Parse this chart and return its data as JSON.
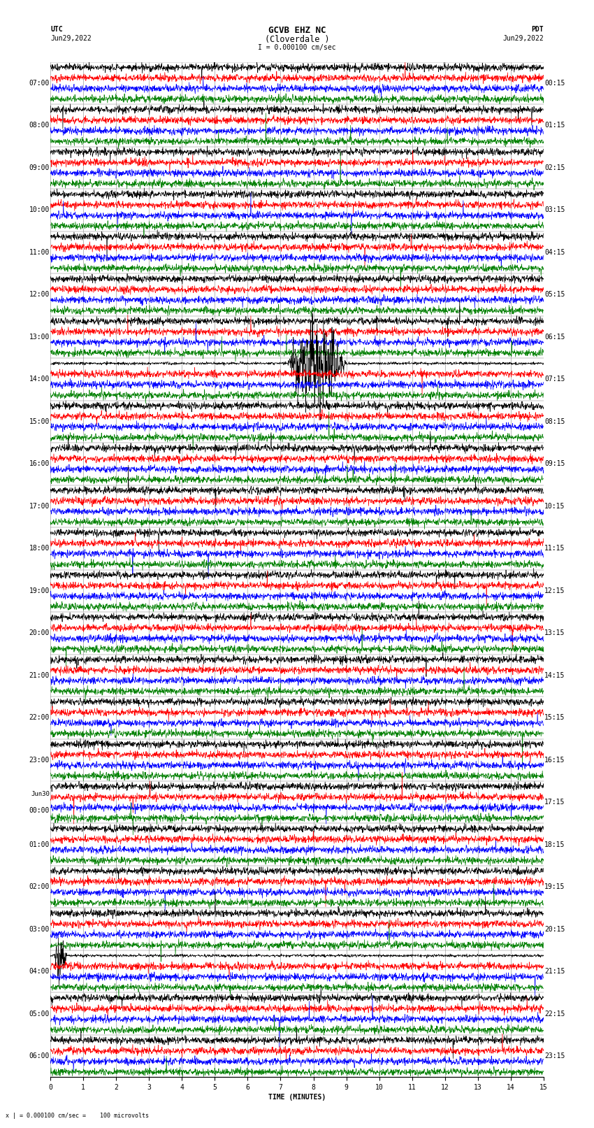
{
  "title_line1": "GCVB EHZ NC",
  "title_line2": "(Cloverdale )",
  "scale_text": "I = 0.000100 cm/sec",
  "left_header": "UTC",
  "left_date": "Jun29,2022",
  "right_header": "PDT",
  "right_date": "Jun29,2022",
  "bottom_label": "TIME (MINUTES)",
  "footer_text": "x | = 0.000100 cm/sec =    100 microvolts",
  "utc_labels": [
    "07:00",
    "08:00",
    "09:00",
    "10:00",
    "11:00",
    "12:00",
    "13:00",
    "14:00",
    "15:00",
    "16:00",
    "17:00",
    "18:00",
    "19:00",
    "20:00",
    "21:00",
    "22:00",
    "23:00",
    "Jun30\n00:00",
    "01:00",
    "02:00",
    "03:00",
    "04:00",
    "05:00",
    "06:00"
  ],
  "pdt_labels": [
    "00:15",
    "01:15",
    "02:15",
    "03:15",
    "04:15",
    "05:15",
    "06:15",
    "07:15",
    "08:15",
    "09:15",
    "10:15",
    "11:15",
    "12:15",
    "13:15",
    "14:15",
    "15:15",
    "16:15",
    "17:15",
    "18:15",
    "19:15",
    "20:15",
    "21:15",
    "22:15",
    "23:15"
  ],
  "n_rows": 24,
  "n_traces_per_row": 4,
  "trace_colors": [
    "black",
    "red",
    "blue",
    "green"
  ],
  "x_ticks": [
    0,
    1,
    2,
    3,
    4,
    5,
    6,
    7,
    8,
    9,
    10,
    11,
    12,
    13,
    14,
    15
  ],
  "x_min": 0,
  "x_max": 15,
  "background_color": "#ffffff",
  "grid_color": "#888888",
  "fig_width": 8.5,
  "fig_height": 16.13,
  "font_family": "monospace",
  "title_fontsize": 9,
  "label_fontsize": 7,
  "tick_fontsize": 7
}
